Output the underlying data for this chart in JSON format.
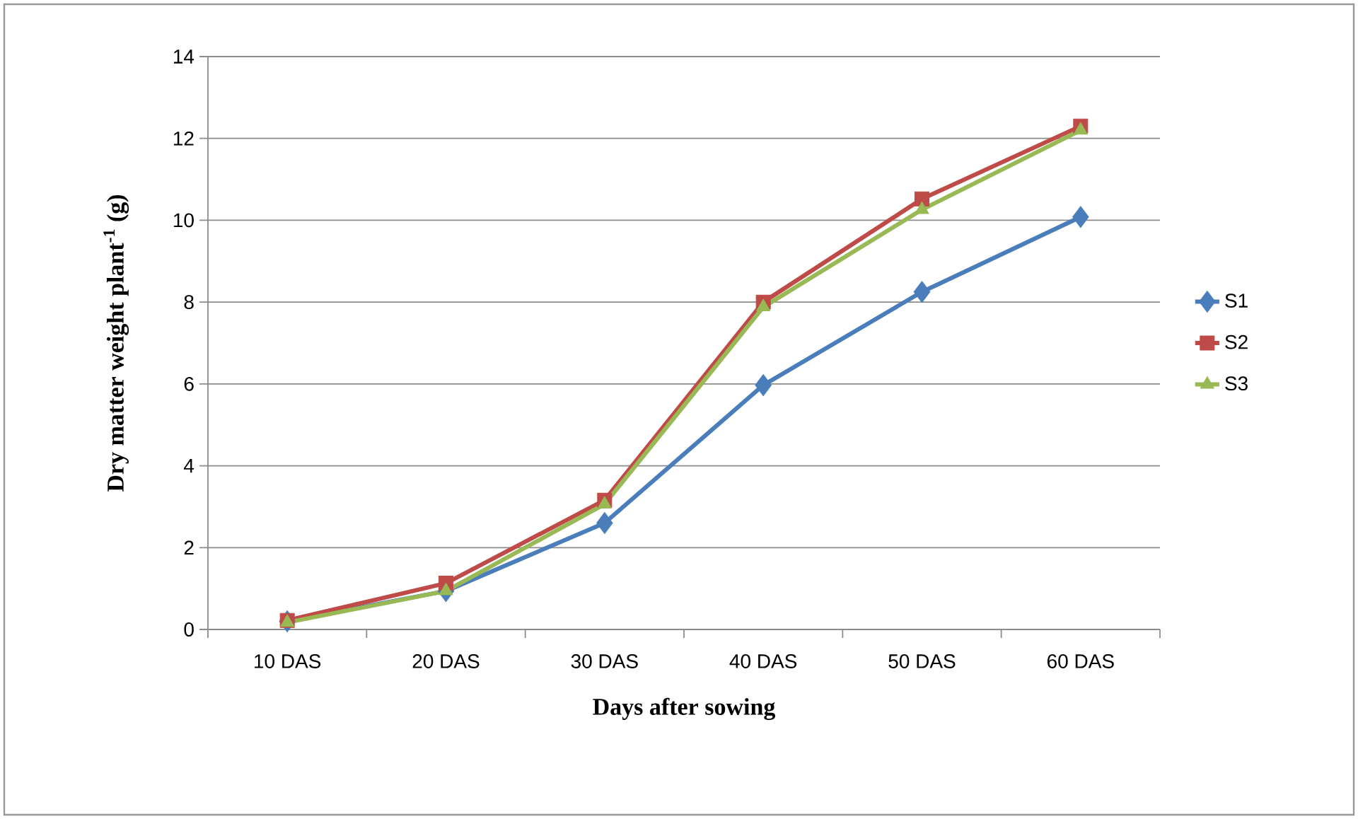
{
  "chart_data": {
    "type": "line",
    "xlabel": "Days after sowing",
    "ylabel": "Dry matter weight  plant$^{-1}$ (g)",
    "categories": [
      "10 DAS",
      "20 DAS",
      "30 DAS",
      "40 DAS",
      "50 DAS",
      "60 DAS"
    ],
    "series": [
      {
        "name": "S1",
        "color": "#4a7ebb",
        "marker": "diamond",
        "values": [
          0.2,
          0.94,
          2.6,
          5.97,
          8.25,
          10.08
        ]
      },
      {
        "name": "S2",
        "color": "#be4b48",
        "marker": "square",
        "values": [
          0.22,
          1.13,
          3.16,
          8.0,
          10.52,
          12.3
        ]
      },
      {
        "name": "S3",
        "color": "#98b954",
        "marker": "triangle",
        "values": [
          0.17,
          0.94,
          3.06,
          7.88,
          10.26,
          12.2
        ]
      }
    ],
    "ylim": [
      0,
      14
    ],
    "yticks": [
      0,
      2,
      4,
      6,
      8,
      10,
      12,
      14
    ],
    "grid": "y",
    "legend": "right",
    "line_style": "solid"
  }
}
